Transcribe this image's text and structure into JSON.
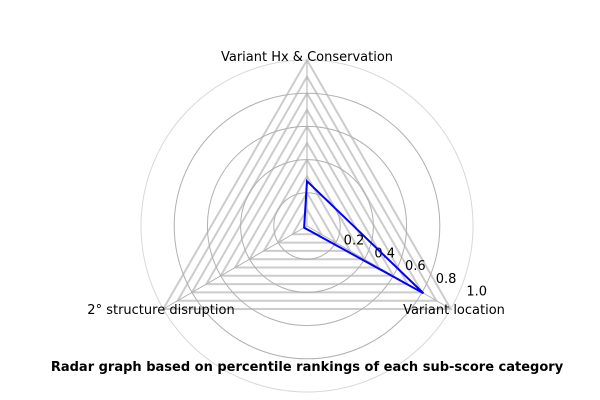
{
  "chart_data": {
    "type": "radar",
    "title": "Radar graph based on percentile rankings of each sub-score category",
    "categories": [
      "Variant location",
      "Variant Hx & Conservation",
      "2° structure disruption"
    ],
    "values": [
      0.81,
      0.27,
      0.02
    ],
    "rlim": [
      0,
      1.0
    ],
    "rticks": [
      "0.2",
      "0.4",
      "0.6",
      "0.8",
      "1.0"
    ],
    "grid": true,
    "line_color": "#0000ff",
    "grid_polygon_color": "#cccccc",
    "grid_circle_color": "#b0b0b0"
  }
}
